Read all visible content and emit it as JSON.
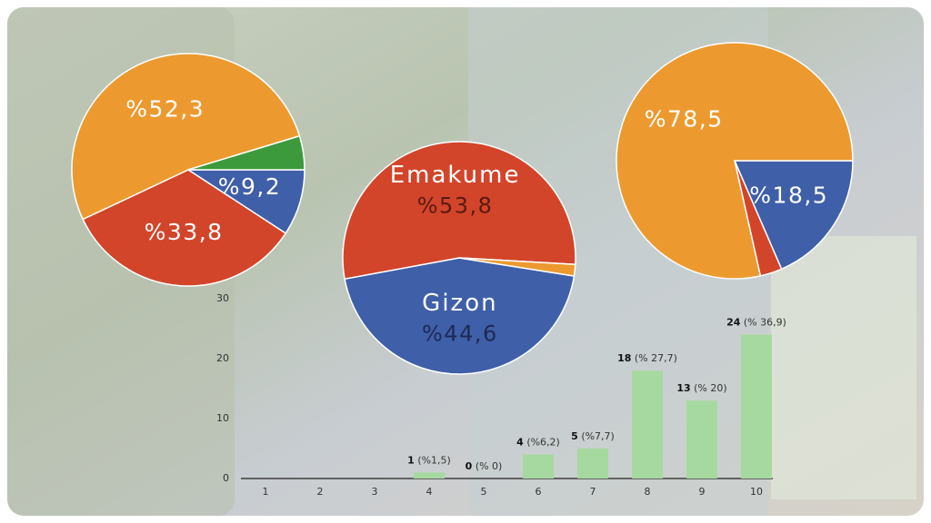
{
  "chart_data": [
    {
      "type": "pie",
      "values": [
        9.2,
        33.8,
        52.3,
        4.7
      ],
      "value_labels": [
        "%9,2",
        "%33,8",
        "%52,3",
        null
      ],
      "colors": [
        "#3f5fa8",
        "#d2452a",
        "#ec9a30",
        "#3c9a3c"
      ]
    },
    {
      "type": "pie",
      "categories": [
        "Gizon",
        "Emakume",
        null
      ],
      "values": [
        44.6,
        53.8,
        1.6
      ],
      "value_labels": [
        "%44,6",
        "%53,8",
        null
      ],
      "colors": [
        "#3f5fa8",
        "#d2452a",
        "#ec9a30"
      ]
    },
    {
      "type": "pie",
      "values": [
        18.5,
        3.0,
        78.5
      ],
      "value_labels": [
        "%18,5",
        null,
        "%78,5"
      ],
      "colors": [
        "#3f5fa8",
        "#d2452a",
        "#ec9a30"
      ]
    },
    {
      "type": "bar",
      "categories": [
        "1",
        "2",
        "3",
        "4",
        "5",
        "6",
        "7",
        "8",
        "9",
        "10"
      ],
      "values": [
        0,
        0,
        0,
        1,
        0,
        4,
        5,
        18,
        13,
        24
      ],
      "percent_labels": [
        null,
        null,
        null,
        "(%1,5)",
        "(% 0)",
        "(%6,2)",
        "(%7,7)",
        "(% 27,7)",
        "(% 20)",
        "(% 36,9)"
      ],
      "color": "#a6d9a0",
      "ylim": [
        0,
        30
      ],
      "yticks": [
        0,
        10,
        20,
        30
      ]
    }
  ]
}
